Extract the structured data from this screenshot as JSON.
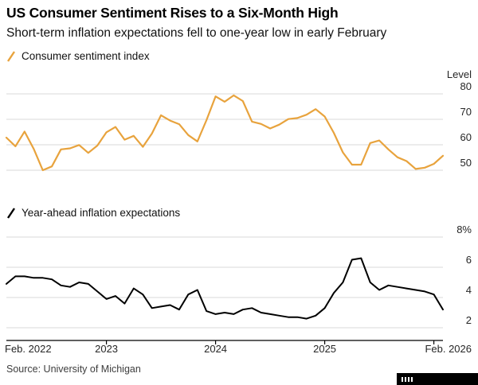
{
  "header": {
    "title": "US Consumer Sentiment Rises to a Six-Month High",
    "subtitle": "Short-term inflation expectations fell to one-year low in early February"
  },
  "colors": {
    "sentiment": "#E8A33D",
    "inflation": "#000000",
    "grid": "#D9D9D9",
    "axis": "#000000"
  },
  "x_axis": {
    "tick_indices": [
      11,
      23,
      35,
      47
    ],
    "labels": [
      {
        "text": "Feb. 2022",
        "pos": "left"
      },
      {
        "text": "2023",
        "index": 11
      },
      {
        "text": "2024",
        "index": 23
      },
      {
        "text": "2025",
        "index": 35
      },
      {
        "text": "Feb. 2026",
        "pos": "right"
      }
    ]
  },
  "chart_data": [
    {
      "type": "line",
      "title": "Consumer sentiment index",
      "axis_label": "Level",
      "x_start": "Feb. 2022",
      "x_end": "Feb. 2026",
      "frequency": "monthly",
      "ylim": [
        46,
        84
      ],
      "legend_position": "top-left",
      "grid": true,
      "yticks": [
        {
          "value": 80,
          "label": "80"
        },
        {
          "value": 70,
          "label": "70"
        },
        {
          "value": 60,
          "label": "60"
        },
        {
          "value": 50,
          "label": "50"
        }
      ],
      "series": [
        {
          "name": "Consumer sentiment index",
          "color": "#E8A33D",
          "values": [
            62.8,
            59.4,
            65.2,
            58.4,
            50.0,
            51.5,
            58.2,
            58.6,
            59.9,
            56.8,
            59.7,
            64.9,
            67.0,
            62.0,
            63.5,
            59.2,
            64.4,
            71.6,
            69.5,
            68.1,
            63.8,
            61.3,
            69.7,
            79.0,
            76.9,
            79.4,
            77.2,
            69.1,
            68.2,
            66.4,
            67.9,
            70.1,
            70.5,
            71.8,
            74.0,
            71.1,
            64.7,
            57.0,
            52.2,
            52.2,
            60.7,
            61.7,
            58.2,
            55.1,
            53.6,
            50.5,
            51.0,
            52.5,
            55.7
          ]
        }
      ]
    },
    {
      "type": "line",
      "title": "Year-ahead inflation expectations",
      "axis_label": "",
      "x_start": "Feb. 2022",
      "x_end": "Feb. 2026",
      "frequency": "monthly",
      "ylim": [
        1,
        8
      ],
      "legend_position": "top-left",
      "grid": true,
      "yticks": [
        {
          "value": 8,
          "label": "8%"
        },
        {
          "value": 6,
          "label": "6"
        },
        {
          "value": 4,
          "label": "4"
        },
        {
          "value": 2,
          "label": "2"
        }
      ],
      "series": [
        {
          "name": "Year-ahead inflation expectations",
          "color": "#000000",
          "values": [
            4.9,
            5.4,
            5.4,
            5.3,
            5.3,
            5.2,
            4.8,
            4.7,
            5.0,
            4.9,
            4.4,
            3.9,
            4.1,
            3.6,
            4.6,
            4.2,
            3.3,
            3.4,
            3.5,
            3.2,
            4.2,
            4.5,
            3.1,
            2.9,
            3.0,
            2.9,
            3.2,
            3.3,
            3.0,
            2.9,
            2.8,
            2.7,
            2.7,
            2.6,
            2.8,
            3.3,
            4.3,
            5.0,
            6.5,
            6.6,
            5.0,
            4.5,
            4.8,
            4.7,
            4.6,
            4.5,
            4.4,
            4.2,
            3.2
          ]
        }
      ]
    }
  ],
  "source": "Source: University of Michigan"
}
